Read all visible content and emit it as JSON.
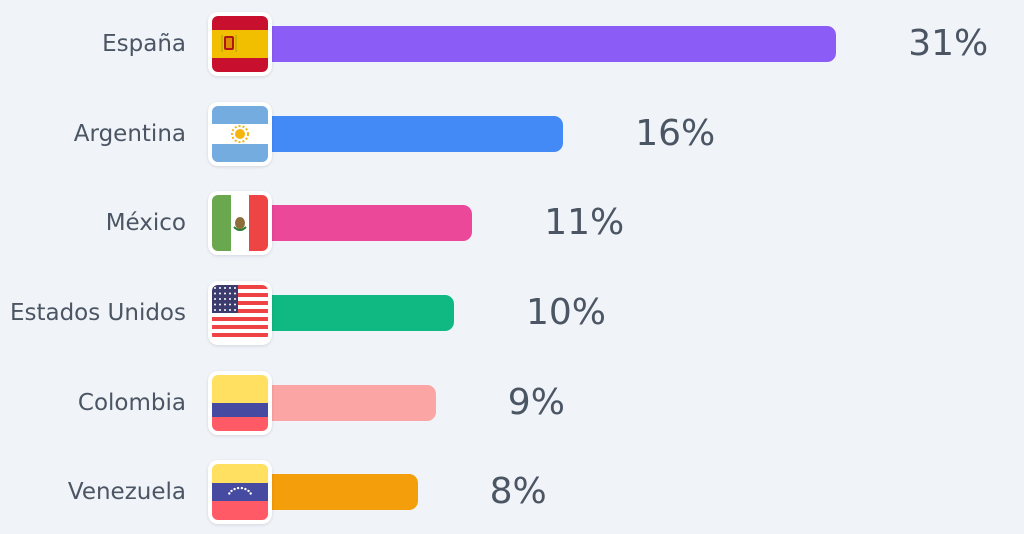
{
  "chart_data": {
    "type": "bar",
    "orientation": "horizontal",
    "categories": [
      "España",
      "Argentina",
      "México",
      "Estados Unidos",
      "Colombia",
      "Venezuela"
    ],
    "values": [
      31,
      16,
      11,
      10,
      9,
      8
    ],
    "value_labels": [
      "31%",
      "16%",
      "11%",
      "10%",
      "9%",
      "8%"
    ],
    "bar_colors": [
      "#8b5cf6",
      "#448af7",
      "#ec4899",
      "#10b981",
      "#fca5a5",
      "#f59e0b"
    ],
    "flag_icons": [
      "spain-flag-icon",
      "argentina-flag-icon",
      "mexico-flag-icon",
      "usa-flag-icon",
      "colombia-flag-icon",
      "venezuela-flag-icon"
    ],
    "title": "",
    "xlabel": "",
    "ylabel": "",
    "grid": false,
    "legend": "none"
  }
}
